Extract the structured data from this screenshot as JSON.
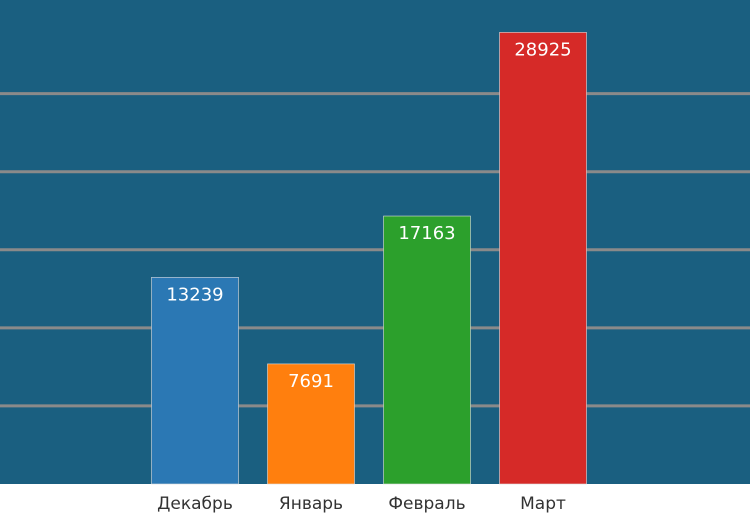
{
  "chart_data": {
    "type": "bar",
    "categories": [
      "Декабрь",
      "Январь",
      "Февраль",
      "Март"
    ],
    "values": [
      13239,
      7691,
      17163,
      28925
    ],
    "colors": [
      "#2b78b4",
      "#ff7f0e",
      "#2ca02c",
      "#d62a28"
    ],
    "ylim": [
      0,
      31000
    ],
    "yticks": [
      5000,
      10000,
      15000,
      20000,
      25000
    ],
    "grid": true
  }
}
